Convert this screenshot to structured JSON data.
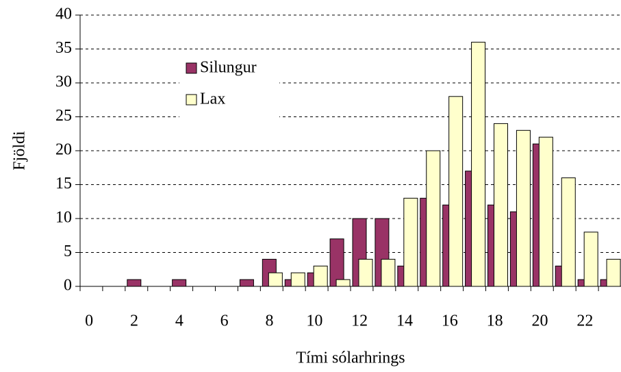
{
  "chart_data": {
    "type": "bar",
    "x_label": "Tími sólarhrings",
    "y_label": "Fjöldi",
    "categories": [
      "0",
      null,
      "2",
      null,
      "4",
      null,
      "6",
      null,
      "8",
      null,
      "10",
      null,
      "12",
      null,
      "14",
      null,
      "16",
      null,
      "18",
      null,
      "20",
      null,
      "22",
      null
    ],
    "series": [
      {
        "name": "Silungur",
        "color": "#993366",
        "values": [
          0,
          0,
          1,
          0,
          1,
          0,
          0,
          1,
          4,
          1,
          2,
          7,
          10,
          10,
          3,
          13,
          12,
          17,
          12,
          11,
          21,
          3,
          1,
          1
        ]
      },
      {
        "name": "Lax",
        "color": "#ffffcc",
        "values": [
          0,
          0,
          0,
          0,
          0,
          0,
          0,
          0,
          2,
          2,
          3,
          1,
          4,
          4,
          13,
          20,
          28,
          36,
          24,
          23,
          22,
          16,
          8,
          4
        ]
      }
    ],
    "ylim": [
      0,
      40
    ],
    "yticks": [
      0,
      5,
      10,
      15,
      20,
      25,
      30,
      35,
      40
    ],
    "grid": true,
    "legend": "upper left"
  }
}
